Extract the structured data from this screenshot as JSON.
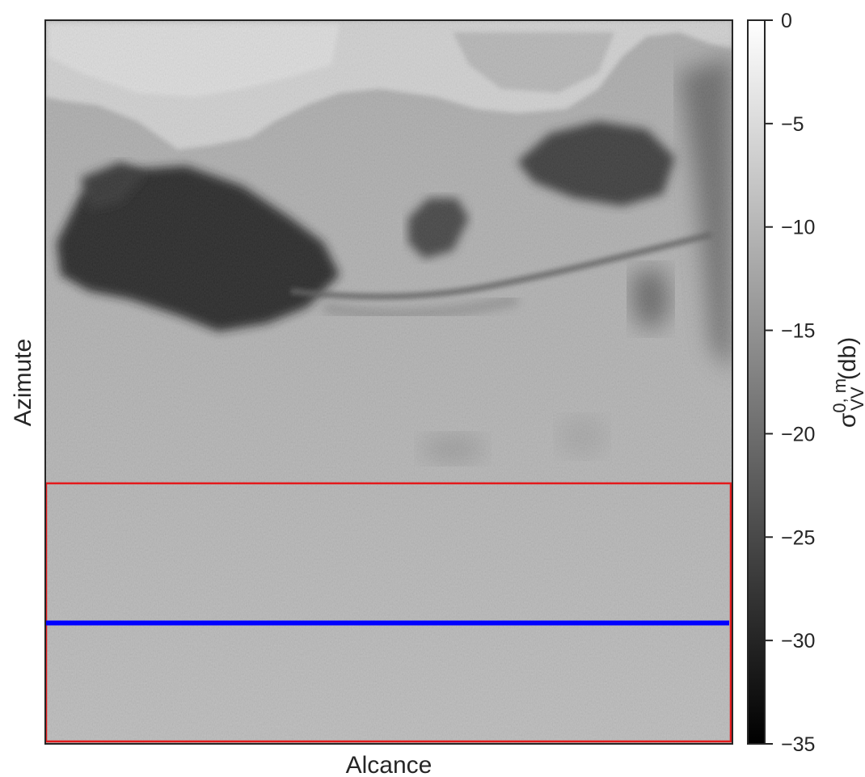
{
  "chart_data": {
    "type": "heatmap",
    "title": "",
    "xlabel": "Alcance",
    "ylabel": "Azimute",
    "x_ticks": [],
    "y_ticks": [],
    "grid": false,
    "colormap": "gray",
    "colorbar": {
      "label": "σ^{0,m}_{VV} (db)",
      "label_base": "σ",
      "label_sup": "0, m",
      "label_sub": "VV",
      "label_unit": " (db)",
      "range": [
        -35,
        0
      ],
      "ticks": [
        0,
        -5,
        -10,
        -15,
        -20,
        -25,
        -30,
        -35
      ],
      "tick_labels": [
        "0",
        "−5",
        "−10",
        "−15",
        "−20",
        "−25",
        "−30",
        "−35"
      ]
    },
    "annotations": [
      {
        "type": "rectangle",
        "name": "analysis-region",
        "color": "#e31a1c",
        "x_range": [
          0.0,
          1.0
        ],
        "y_range": [
          0.0,
          0.36
        ]
      },
      {
        "type": "horizontal-line",
        "name": "profile-line",
        "color": "#0000ff",
        "y": 0.167
      }
    ]
  }
}
